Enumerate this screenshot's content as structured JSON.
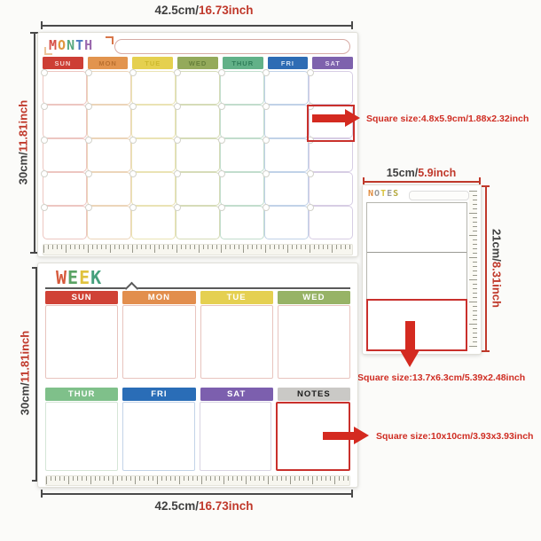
{
  "page": {
    "background": "#fbfbf9"
  },
  "colors": {
    "dim_dark": "#3f3f3f",
    "dim_red": "#c0392b",
    "annotation_red": "#cf2d23",
    "highlight_red": "#c9302c"
  },
  "dimension_labels": {
    "month_width": {
      "cm": "42.5cm/",
      "inch": "16.73inch"
    },
    "month_height": {
      "cm": "30cm/",
      "inch": "11.81inch"
    },
    "week_width": {
      "cm": "42.5cm/",
      "inch": "16.73inch"
    },
    "week_height": {
      "cm": "30cm/",
      "inch": "11.81inch"
    },
    "notes_width": {
      "cm": "15cm/",
      "inch": "5.9inch"
    },
    "notes_height": {
      "cm": "21cm/",
      "inch": "8.31inch"
    }
  },
  "annotations": {
    "month_cell_size": "Square size:4.8x5.9cm/1.88x2.32inch",
    "notes_cell_size": "Square size:13.7x6.3cm/5.39x2.48inch",
    "week_cell_size": "Square size:10x10cm/3.93x3.93inch"
  },
  "month_board": {
    "title": "MONTH",
    "title_letters": [
      {
        "ch": "M",
        "color": "#d65048"
      },
      {
        "ch": "O",
        "color": "#e0973f"
      },
      {
        "ch": "N",
        "color": "#56a87e"
      },
      {
        "ch": "T",
        "color": "#4a77c0"
      },
      {
        "ch": "H",
        "color": "#9a68ae"
      }
    ],
    "days": [
      {
        "label": "SUN",
        "color": "#cd3e35",
        "text": "#f3d2cd",
        "tint": "#edc6c1"
      },
      {
        "label": "MON",
        "color": "#e2944e",
        "text": "#b96f2e",
        "tint": "#ecd5b9"
      },
      {
        "label": "TUE",
        "color": "#e5d04f",
        "text": "#cdb82e",
        "tint": "#eae3b4"
      },
      {
        "label": "WED",
        "color": "#94aa5b",
        "text": "#657f3a",
        "tint": "#d6dcb8"
      },
      {
        "label": "THUR",
        "color": "#62b188",
        "text": "#2e7d58",
        "tint": "#c2ddcd"
      },
      {
        "label": "FRI",
        "color": "#2e6cb4",
        "text": "#cfe0f2",
        "tint": "#c1d2e8"
      },
      {
        "label": "SAT",
        "color": "#7e62ad",
        "text": "#e6dcf2",
        "tint": "#d7cde4"
      }
    ],
    "grid": {
      "rows": 5,
      "cols": 7,
      "highlight_row": 2,
      "highlight_col": 7
    }
  },
  "week_board": {
    "title": "WEEK",
    "title_letters": [
      {
        "ch": "W",
        "color": "#d65a3c"
      },
      {
        "ch": "E",
        "color": "#5aa364"
      },
      {
        "ch": "E",
        "color": "#e0c23e"
      },
      {
        "ch": "K",
        "color": "#44a07c"
      }
    ],
    "row1": [
      {
        "label": "SUN",
        "color": "#d04236",
        "text": "#ffffff",
        "tint": "#e8c4be"
      },
      {
        "label": "MON",
        "color": "#e28e4d",
        "text": "#ffffff",
        "tint": "#e8c4be"
      },
      {
        "label": "TUE",
        "color": "#e5d051",
        "text": "#ffffff",
        "tint": "#e8c4be"
      },
      {
        "label": "WED",
        "color": "#97b366",
        "text": "#ffffff",
        "tint": "#e8c4be"
      }
    ],
    "row2": [
      {
        "label": "THUR",
        "color": "#7fc08a",
        "text": "#ffffff",
        "tint": "#d5e5d7"
      },
      {
        "label": "FRI",
        "color": "#2a6db7",
        "text": "#ffffff",
        "tint": "#c3d3e8"
      },
      {
        "label": "SAT",
        "color": "#7c5fae",
        "text": "#ffffff",
        "tint": "#d9d4e3"
      },
      {
        "label": "NOTES",
        "color": "#cac9c6",
        "text": "#1c1c1c",
        "tint": "#c9302c",
        "highlight": true
      }
    ]
  },
  "notes_board": {
    "title": "NOTES",
    "title_letters": [
      {
        "ch": "N",
        "color": "#e08a3c"
      },
      {
        "ch": "O",
        "color": "#9b9b9b"
      },
      {
        "ch": "T",
        "color": "#d8c23c"
      },
      {
        "ch": "E",
        "color": "#9b9b9b"
      },
      {
        "ch": "S",
        "color": "#b5a93e"
      }
    ],
    "sections": 3
  }
}
